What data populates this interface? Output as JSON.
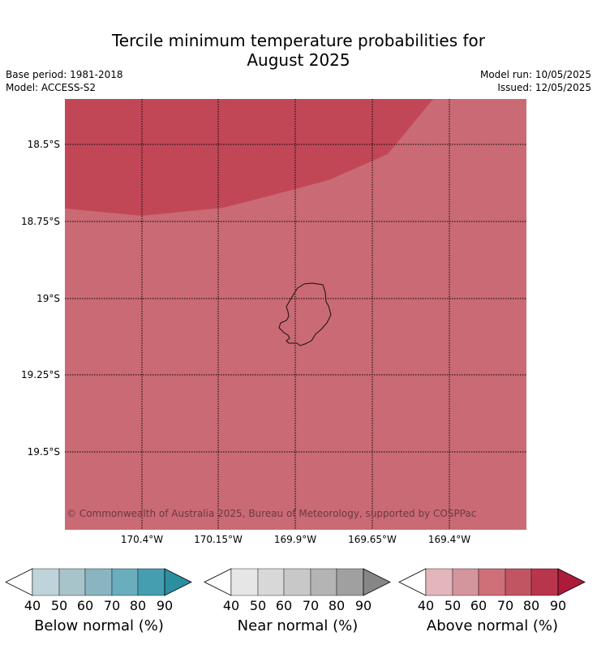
{
  "header": {
    "title_line1": "Tercile minimum temperature probabilities for",
    "title_line2": "August 2025",
    "base_period": "Base period: 1981-2018",
    "model": "Model: ACCESS-S2",
    "model_run": "Model run: 10/05/2025",
    "issued": "Issued: 12/05/2025"
  },
  "map": {
    "region": "Niue",
    "latitude_labels": [
      "18.5°S",
      "18.75°S",
      "19°S",
      "19.25°S",
      "19.5°S"
    ],
    "longitude_labels": [
      "170.4°W",
      "170.15°W",
      "169.9°W",
      "169.65°W",
      "169.4°W"
    ],
    "copyright": "© Commonwealth of Australia 2025, Bureau of Meteorology, supported by COSPPac",
    "category_shown": "Above normal",
    "probability_zones": [
      {
        "range": "70-80",
        "color": "#c14757"
      },
      {
        "range": "60-70",
        "color": "#ca6a74"
      }
    ]
  },
  "legends": [
    {
      "label": "Below normal (%)",
      "ticks": [
        "40",
        "50",
        "60",
        "70",
        "80",
        "90"
      ],
      "colors": [
        "#bfd3da",
        "#a6c4ca",
        "#89b5c0",
        "#6aadbc",
        "#459eb0",
        "#2c8fa1"
      ]
    },
    {
      "label": "Near normal (%)",
      "ticks": [
        "40",
        "50",
        "60",
        "70",
        "80",
        "90"
      ],
      "colors": [
        "#e6e6e6",
        "#d8d8d8",
        "#c8c8c8",
        "#b4b4b4",
        "#a0a0a0",
        "#868686"
      ]
    },
    {
      "label": "Above normal (%)",
      "ticks": [
        "40",
        "50",
        "60",
        "70",
        "80",
        "90"
      ],
      "colors": [
        "#e2b6bb",
        "#d5959d",
        "#cf6f78",
        "#c25562",
        "#b9354b",
        "#ad1b3b"
      ]
    }
  ]
}
